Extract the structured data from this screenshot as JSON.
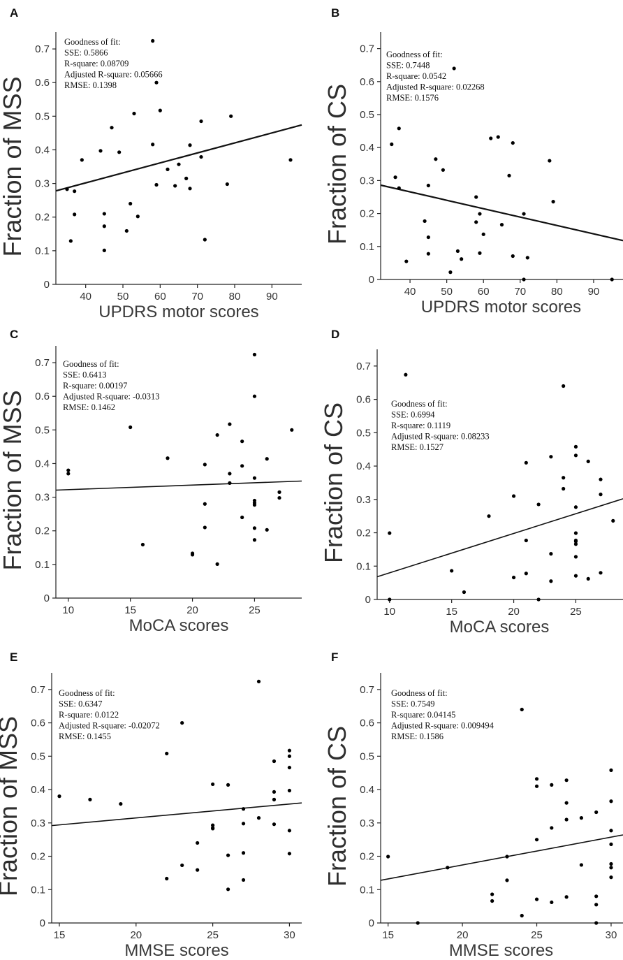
{
  "figure": {
    "panels": [
      {
        "letter": "A",
        "ylabel": "Fraction of MSS",
        "xlabel": "UPDRS motor scores",
        "gof": [
          "Goodness of fit:",
          "SSE: 0.5866",
          "R-square: 0.08709",
          "Adjusted R-square: 0.05666",
          "RMSE: 0.1398"
        ]
      },
      {
        "letter": "B",
        "ylabel": "Fraction of CS",
        "xlabel": "UPDRS motor scores",
        "gof": [
          "Goodness of fit:",
          "SSE: 0.7448",
          "R-square: 0.0542",
          "Adjusted R-square: 0.02268",
          "RMSE: 0.1576"
        ]
      },
      {
        "letter": "C",
        "ylabel": "Fraction of MSS",
        "xlabel": "MoCA scores",
        "gof": [
          "Goodness of fit:",
          "SSE: 0.6413",
          "R-square: 0.00197",
          "Adjusted R-square: -0.0313",
          "RMSE: 0.1462"
        ]
      },
      {
        "letter": "D",
        "ylabel": "Fraction of CS",
        "xlabel": "MoCA scores",
        "gof": [
          "Goodness of fit:",
          "SSE: 0.6994",
          "R-square: 0.1119",
          "Adjusted R-square: 0.08233",
          "RMSE: 0.1527"
        ]
      },
      {
        "letter": "E",
        "ylabel": "Fraction of MSS",
        "xlabel": "MMSE scores",
        "gof": [
          "Goodness of fit:",
          "SSE: 0.6347",
          "R-square: 0.0122",
          "Adjusted R-square: -0.02072",
          "RMSE: 0.1455"
        ]
      },
      {
        "letter": "F",
        "ylabel": "Fraction of CS",
        "xlabel": "MMSE scores",
        "gof": [
          "Goodness of fit:",
          "SSE: 0.7549",
          "R-square: 0.04145",
          "Adjusted R-square: 0.009494",
          "RMSE: 0.1586"
        ]
      }
    ]
  },
  "chart_data": [
    {
      "type": "scatter",
      "xlim": [
        32,
        98
      ],
      "ylim": [
        0,
        0.75
      ],
      "xticks": [
        40,
        50,
        60,
        70,
        80,
        90
      ],
      "yticks": [
        0,
        0.1,
        0.2,
        0.3,
        0.4,
        0.5,
        0.6,
        0.7
      ],
      "xlabel": "UPDRS motor scores",
      "ylabel": "Fraction of MSS",
      "fit_line": {
        "x": [
          32,
          98
        ],
        "y": [
          0.278,
          0.474
        ]
      },
      "points": [
        [
          58,
          0.724
        ],
        [
          59,
          0.6
        ],
        [
          60,
          0.517
        ],
        [
          53,
          0.508
        ],
        [
          79,
          0.5
        ],
        [
          71,
          0.485
        ],
        [
          47,
          0.466
        ],
        [
          58,
          0.416
        ],
        [
          68,
          0.414
        ],
        [
          44,
          0.397
        ],
        [
          49,
          0.393
        ],
        [
          71,
          0.379
        ],
        [
          39,
          0.37
        ],
        [
          95,
          0.37
        ],
        [
          65,
          0.357
        ],
        [
          62,
          0.342
        ],
        [
          59,
          0.296
        ],
        [
          64,
          0.293
        ],
        [
          78,
          0.298
        ],
        [
          67,
          0.315
        ],
        [
          68,
          0.285
        ],
        [
          35,
          0.283
        ],
        [
          37,
          0.277
        ],
        [
          52,
          0.24
        ],
        [
          37,
          0.208
        ],
        [
          45,
          0.21
        ],
        [
          54,
          0.202
        ],
        [
          45,
          0.173
        ],
        [
          51,
          0.159
        ],
        [
          72,
          0.133
        ],
        [
          36,
          0.129
        ],
        [
          45,
          0.101
        ]
      ]
    },
    {
      "type": "scatter",
      "xlim": [
        32,
        98
      ],
      "ylim": [
        0,
        0.75
      ],
      "xticks": [
        40,
        50,
        60,
        70,
        80,
        90
      ],
      "yticks": [
        0,
        0.1,
        0.2,
        0.3,
        0.4,
        0.5,
        0.6,
        0.7
      ],
      "xlabel": "UPDRS motor scores",
      "ylabel": "Fraction of CS",
      "fit_line": {
        "x": [
          32,
          98
        ],
        "y": [
          0.286,
          0.118
        ]
      },
      "points": [
        [
          52,
          0.64
        ],
        [
          37,
          0.458
        ],
        [
          64,
          0.432
        ],
        [
          62,
          0.428
        ],
        [
          68,
          0.414
        ],
        [
          35,
          0.41
        ],
        [
          47,
          0.365
        ],
        [
          78,
          0.36
        ],
        [
          49,
          0.332
        ],
        [
          67,
          0.315
        ],
        [
          36,
          0.31
        ],
        [
          45,
          0.285
        ],
        [
          37,
          0.277
        ],
        [
          58,
          0.25
        ],
        [
          79,
          0.236
        ],
        [
          59,
          0.199
        ],
        [
          71,
          0.199
        ],
        [
          44,
          0.177
        ],
        [
          58,
          0.174
        ],
        [
          65,
          0.166
        ],
        [
          60,
          0.137
        ],
        [
          45,
          0.128
        ],
        [
          53,
          0.086
        ],
        [
          45,
          0.078
        ],
        [
          59,
          0.08
        ],
        [
          54,
          0.062
        ],
        [
          68,
          0.071
        ],
        [
          72,
          0.066
        ],
        [
          39,
          0.055
        ],
        [
          51,
          0.022
        ],
        [
          71,
          0.0
        ],
        [
          95,
          0.0
        ]
      ]
    },
    {
      "type": "scatter",
      "xlim": [
        9,
        28.8
      ],
      "ylim": [
        0,
        0.75
      ],
      "xticks": [
        10,
        15,
        20,
        25
      ],
      "yticks": [
        0,
        0.1,
        0.2,
        0.3,
        0.4,
        0.5,
        0.6,
        0.7
      ],
      "xlabel": "MoCA scores",
      "ylabel": "Fraction of MSS",
      "fit_line": {
        "x": [
          9,
          28.8
        ],
        "y": [
          0.321,
          0.348
        ]
      },
      "points": [
        [
          25,
          0.724
        ],
        [
          25,
          0.6
        ],
        [
          23,
          0.517
        ],
        [
          15,
          0.508
        ],
        [
          28,
          0.5
        ],
        [
          22,
          0.485
        ],
        [
          24,
          0.466
        ],
        [
          18,
          0.416
        ],
        [
          26,
          0.414
        ],
        [
          21,
          0.397
        ],
        [
          24,
          0.393
        ],
        [
          10,
          0.38
        ],
        [
          10,
          0.37
        ],
        [
          23,
          0.37
        ],
        [
          25,
          0.357
        ],
        [
          23,
          0.342
        ],
        [
          27,
          0.315
        ],
        [
          27,
          0.298
        ],
        [
          25,
          0.29
        ],
        [
          25,
          0.283
        ],
        [
          25,
          0.277
        ],
        [
          21,
          0.28
        ],
        [
          24,
          0.24
        ],
        [
          21,
          0.21
        ],
        [
          25,
          0.208
        ],
        [
          26,
          0.203
        ],
        [
          25,
          0.173
        ],
        [
          16,
          0.159
        ],
        [
          20,
          0.133
        ],
        [
          20,
          0.129
        ],
        [
          22,
          0.101
        ]
      ]
    },
    {
      "type": "scatter",
      "xlim": [
        9,
        28.8
      ],
      "ylim": [
        0,
        0.75
      ],
      "xticks": [
        10,
        15,
        20,
        25
      ],
      "yticks": [
        0,
        0.1,
        0.2,
        0.3,
        0.4,
        0.5,
        0.6,
        0.7
      ],
      "xlabel": "MoCA scores",
      "ylabel": "Fraction of CS",
      "fit_line": {
        "x": [
          9,
          28.8
        ],
        "y": [
          0.068,
          0.302
        ]
      },
      "points": [
        [
          11.3,
          0.674
        ],
        [
          24,
          0.64
        ],
        [
          25,
          0.458
        ],
        [
          25,
          0.432
        ],
        [
          23,
          0.428
        ],
        [
          26,
          0.414
        ],
        [
          21,
          0.41
        ],
        [
          24,
          0.365
        ],
        [
          27,
          0.36
        ],
        [
          24,
          0.332
        ],
        [
          27,
          0.315
        ],
        [
          20,
          0.31
        ],
        [
          22,
          0.285
        ],
        [
          25,
          0.277
        ],
        [
          18,
          0.25
        ],
        [
          28,
          0.236
        ],
        [
          10,
          0.199
        ],
        [
          25,
          0.199
        ],
        [
          25,
          0.177
        ],
        [
          21,
          0.177
        ],
        [
          25,
          0.174
        ],
        [
          25,
          0.166
        ],
        [
          23,
          0.137
        ],
        [
          25,
          0.128
        ],
        [
          15,
          0.086
        ],
        [
          21,
          0.078
        ],
        [
          27,
          0.08
        ],
        [
          20,
          0.066
        ],
        [
          25,
          0.071
        ],
        [
          26,
          0.062
        ],
        [
          23,
          0.055
        ],
        [
          16,
          0.022
        ],
        [
          10,
          0.0
        ],
        [
          22,
          0.0
        ]
      ]
    },
    {
      "type": "scatter",
      "xlim": [
        14.5,
        30.8
      ],
      "ylim": [
        0,
        0.75
      ],
      "xticks": [
        15,
        20,
        25,
        30
      ],
      "yticks": [
        0,
        0.1,
        0.2,
        0.3,
        0.4,
        0.5,
        0.6,
        0.7
      ],
      "xlabel": "MMSE scores",
      "ylabel": "Fraction of MSS",
      "fit_line": {
        "x": [
          14.5,
          30.8
        ],
        "y": [
          0.292,
          0.36
        ]
      },
      "points": [
        [
          28,
          0.724
        ],
        [
          23,
          0.6
        ],
        [
          30,
          0.517
        ],
        [
          22,
          0.508
        ],
        [
          30,
          0.5
        ],
        [
          29,
          0.485
        ],
        [
          30,
          0.466
        ],
        [
          25,
          0.416
        ],
        [
          26,
          0.414
        ],
        [
          30,
          0.397
        ],
        [
          29,
          0.393
        ],
        [
          15,
          0.38
        ],
        [
          17,
          0.37
        ],
        [
          29,
          0.37
        ],
        [
          19,
          0.357
        ],
        [
          27,
          0.342
        ],
        [
          28,
          0.315
        ],
        [
          27,
          0.298
        ],
        [
          29,
          0.296
        ],
        [
          25,
          0.293
        ],
        [
          25,
          0.285
        ],
        [
          25,
          0.283
        ],
        [
          30,
          0.277
        ],
        [
          24,
          0.24
        ],
        [
          27,
          0.21
        ],
        [
          30,
          0.208
        ],
        [
          26,
          0.203
        ],
        [
          23,
          0.173
        ],
        [
          24,
          0.159
        ],
        [
          22,
          0.133
        ],
        [
          27,
          0.129
        ],
        [
          26,
          0.101
        ]
      ]
    },
    {
      "type": "scatter",
      "xlim": [
        14.5,
        30.8
      ],
      "ylim": [
        0,
        0.75
      ],
      "xticks": [
        15,
        20,
        25,
        30
      ],
      "yticks": [
        0,
        0.1,
        0.2,
        0.3,
        0.4,
        0.5,
        0.6,
        0.7
      ],
      "xlabel": "MMSE scores",
      "ylabel": "Fraction of CS",
      "fit_line": {
        "x": [
          14.5,
          30.8
        ],
        "y": [
          0.128,
          0.264
        ]
      },
      "points": [
        [
          24,
          0.64
        ],
        [
          30,
          0.458
        ],
        [
          25,
          0.432
        ],
        [
          27,
          0.428
        ],
        [
          26,
          0.414
        ],
        [
          25,
          0.41
        ],
        [
          27,
          0.36
        ],
        [
          30,
          0.365
        ],
        [
          29,
          0.332
        ],
        [
          27,
          0.31
        ],
        [
          28,
          0.315
        ],
        [
          26,
          0.285
        ],
        [
          30,
          0.277
        ],
        [
          25,
          0.25
        ],
        [
          30,
          0.236
        ],
        [
          15,
          0.199
        ],
        [
          23,
          0.199
        ],
        [
          30,
          0.177
        ],
        [
          28,
          0.174
        ],
        [
          30,
          0.166
        ],
        [
          19,
          0.166
        ],
        [
          30,
          0.137
        ],
        [
          23,
          0.128
        ],
        [
          22,
          0.086
        ],
        [
          29,
          0.08
        ],
        [
          27,
          0.078
        ],
        [
          25,
          0.071
        ],
        [
          22,
          0.066
        ],
        [
          26,
          0.062
        ],
        [
          29,
          0.055
        ],
        [
          24,
          0.022
        ],
        [
          17,
          0.0
        ],
        [
          29,
          0.0
        ]
      ]
    }
  ]
}
